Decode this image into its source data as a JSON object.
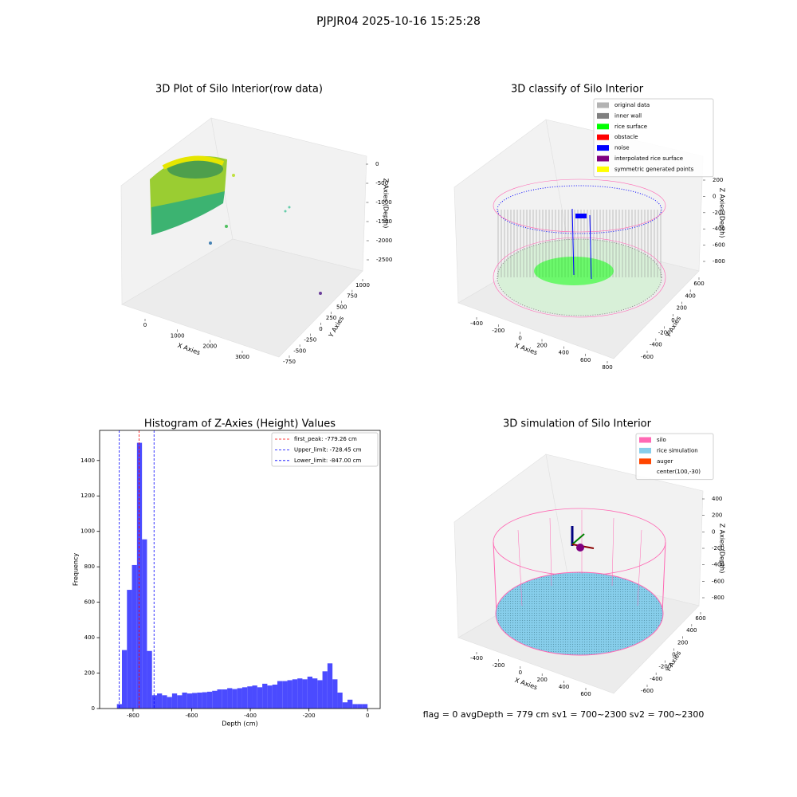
{
  "title": "PJPJR04 2025-10-16 15:25:28",
  "footer": "flag = 0     avgDepth = 779 cm  sv1 = 700~2300  sv2 = 700~2300",
  "chart_data": [
    {
      "type": "scatter3d",
      "title": "3D Plot of Silo Interior(row data)",
      "xlabel": "X Axies",
      "ylabel": "Y Axies",
      "zlabel": "Z Axies (Depth)",
      "xticks": [
        0,
        1000,
        2000,
        3000
      ],
      "yticks": [
        1000,
        750,
        500,
        250,
        0,
        -250,
        -500,
        -750
      ],
      "zticks": [
        0,
        -500,
        -1000,
        -1500,
        -2000,
        -2500
      ]
    },
    {
      "type": "scatter3d",
      "title": "3D classify of Silo Interior",
      "xlabel": "X Axies",
      "ylabel": "Y Axies",
      "zlabel": "Z Axies (Depth)",
      "xticks": [
        -400,
        -200,
        0,
        200,
        400,
        600,
        800
      ],
      "yticks": [
        600,
        400,
        200,
        0,
        -200,
        -400,
        -600
      ],
      "zticks": [
        200,
        0,
        -200,
        -400,
        -600,
        -800
      ],
      "legend": [
        {
          "name": "original data",
          "color": "#b3b3b3"
        },
        {
          "name": "inner wall",
          "color": "#808080"
        },
        {
          "name": "rice surface",
          "color": "#00ff00"
        },
        {
          "name": "obstacle",
          "color": "#ff0000"
        },
        {
          "name": "noise",
          "color": "#0000ff"
        },
        {
          "name": "interpolated rice surface",
          "color": "#800080"
        },
        {
          "name": "symmetric generated points",
          "color": "#ffff00"
        }
      ]
    },
    {
      "type": "histogram",
      "title": "Histogram of Z-Axies (Height) Values",
      "xlabel": "Depth (cm)",
      "ylabel": "Frequency",
      "color": "#4b4bff",
      "bins": [
        -855,
        -837.9,
        -820.8,
        -803.7,
        -786.6,
        -769.5,
        -752.4,
        -735.3,
        -718.2,
        -701.1,
        -684,
        -666.9,
        -649.8,
        -632.7,
        -615.6,
        -598.5,
        -581.4,
        -564.3,
        -547.2,
        -530.1,
        -513,
        -495.9,
        -478.8,
        -461.7,
        -444.6,
        -427.5,
        -410.4,
        -393.3,
        -376.2,
        -359.1,
        -342,
        -324.9,
        -307.8,
        -290.7,
        -273.6,
        -256.5,
        -239.4,
        -222.3,
        -205.2,
        -188.1,
        -171,
        -153.9,
        -136.8,
        -119.7,
        -102.6,
        -85.5,
        -68.4,
        -51.3,
        -34.2,
        -17.1,
        0
      ],
      "counts": [
        25,
        330,
        670,
        810,
        1500,
        955,
        325,
        75,
        85,
        75,
        65,
        85,
        75,
        90,
        85,
        88,
        90,
        92,
        95,
        100,
        108,
        108,
        115,
        110,
        115,
        120,
        125,
        130,
        120,
        140,
        130,
        135,
        155,
        155,
        160,
        165,
        170,
        165,
        180,
        170,
        160,
        210,
        255,
        165,
        90,
        35,
        50,
        25,
        25,
        25
      ],
      "xlim": [
        -914,
        43
      ],
      "ylim": [
        0,
        1570
      ],
      "xticks": [
        -800,
        -600,
        -400,
        -200,
        0
      ],
      "yticks": [
        0,
        200,
        400,
        600,
        800,
        1000,
        1200,
        1400
      ],
      "vlines": [
        {
          "name": "first_peak: -779.26 cm",
          "value": -779.26,
          "color": "#ff0000"
        },
        {
          "name": "Upper_limit: -728.45 cm",
          "value": -728.45,
          "color": "#0000ff"
        },
        {
          "name": "Lower_limit: -847.00 cm",
          "value": -847.0,
          "color": "#0000ff"
        }
      ]
    },
    {
      "type": "scatter3d",
      "title": "3D simulation of Silo Interior",
      "xlabel": "X Axies",
      "ylabel": "Y Axies",
      "zlabel": "Z Axies (Depth)",
      "xticks": [
        -400,
        -200,
        0,
        200,
        400,
        600
      ],
      "yticks": [
        600,
        400,
        200,
        0,
        -200,
        -400,
        -600
      ],
      "zticks": [
        400,
        200,
        0,
        -200,
        -400,
        -600,
        -800
      ],
      "legend": [
        {
          "name": "silo",
          "color": "#ff69b4"
        },
        {
          "name": "rice simulation",
          "color": "#87ceeb"
        },
        {
          "name": "auger",
          "color": "#ff4500"
        },
        {
          "name": "center(100,-30)"
        }
      ]
    }
  ]
}
